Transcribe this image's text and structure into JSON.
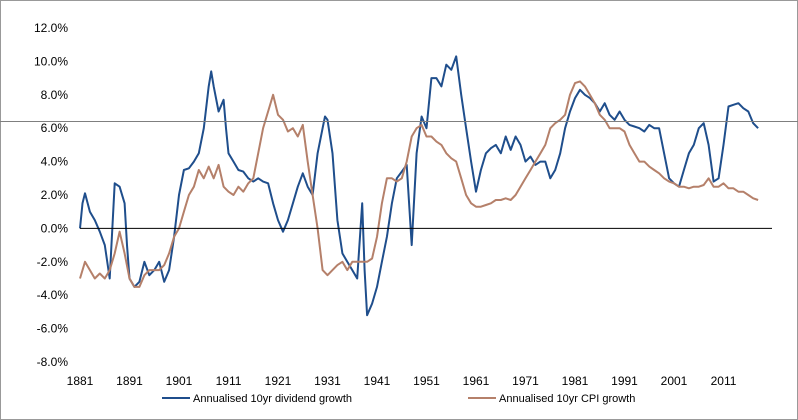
{
  "chart_data": {
    "type": "line",
    "title": "",
    "xlabel": "",
    "ylabel": "",
    "ylim": [
      -0.08,
      0.12
    ],
    "xlim": [
      1881,
      2019
    ],
    "y_ticks": [
      "-8.0%",
      "-6.0%",
      "-4.0%",
      "-2.0%",
      "0.0%",
      "2.0%",
      "4.0%",
      "6.0%",
      "8.0%",
      "10.0%",
      "12.0%"
    ],
    "y_tick_values": [
      -0.08,
      -0.06,
      -0.04,
      -0.02,
      0.0,
      0.02,
      0.04,
      0.06,
      0.08,
      0.1,
      0.12
    ],
    "x_ticks": [
      "1881",
      "1891",
      "1901",
      "1911",
      "1921",
      "1931",
      "1941",
      "1951",
      "1961",
      "1971",
      "1981",
      "1991",
      "2001",
      "2011"
    ],
    "x_tick_values": [
      1881,
      1891,
      1901,
      1911,
      1921,
      1931,
      1941,
      1951,
      1961,
      1971,
      1981,
      1991,
      2001,
      2011
    ],
    "reference_line": 0.064,
    "grid": false,
    "legend_position": "bottom",
    "series": [
      {
        "name": "Annualised 10yr dividend growth",
        "color": "#1f4e8c",
        "points": [
          [
            1881,
            0.0
          ],
          [
            1881.5,
            0.015
          ],
          [
            1882,
            0.021
          ],
          [
            1883,
            0.01
          ],
          [
            1884,
            0.005
          ],
          [
            1885,
            -0.002
          ],
          [
            1886,
            -0.01
          ],
          [
            1887,
            -0.03
          ],
          [
            1888,
            0.027
          ],
          [
            1889,
            0.025
          ],
          [
            1890,
            0.015
          ],
          [
            1890.5,
            -0.01
          ],
          [
            1891,
            -0.03
          ],
          [
            1892,
            -0.035
          ],
          [
            1893,
            -0.032
          ],
          [
            1894,
            -0.02
          ],
          [
            1895,
            -0.028
          ],
          [
            1896,
            -0.025
          ],
          [
            1897,
            -0.02
          ],
          [
            1898,
            -0.032
          ],
          [
            1899,
            -0.025
          ],
          [
            1900,
            -0.005
          ],
          [
            1901,
            0.02
          ],
          [
            1902,
            0.035
          ],
          [
            1903,
            0.036
          ],
          [
            1904,
            0.04
          ],
          [
            1905,
            0.045
          ],
          [
            1906,
            0.06
          ],
          [
            1907,
            0.085
          ],
          [
            1907.5,
            0.094
          ],
          [
            1908,
            0.085
          ],
          [
            1909,
            0.07
          ],
          [
            1910,
            0.077
          ],
          [
            1910.5,
            0.06
          ],
          [
            1911,
            0.045
          ],
          [
            1912,
            0.04
          ],
          [
            1913,
            0.035
          ],
          [
            1914,
            0.034
          ],
          [
            1915,
            0.03
          ],
          [
            1916,
            0.028
          ],
          [
            1917,
            0.03
          ],
          [
            1918,
            0.028
          ],
          [
            1919,
            0.027
          ],
          [
            1920,
            0.015
          ],
          [
            1921,
            0.005
          ],
          [
            1922,
            -0.002
          ],
          [
            1923,
            0.005
          ],
          [
            1924,
            0.015
          ],
          [
            1925,
            0.025
          ],
          [
            1926,
            0.033
          ],
          [
            1927,
            0.025
          ],
          [
            1928,
            0.02
          ],
          [
            1929,
            0.045
          ],
          [
            1930,
            0.06
          ],
          [
            1930.5,
            0.067
          ],
          [
            1931,
            0.065
          ],
          [
            1932,
            0.045
          ],
          [
            1933,
            0.005
          ],
          [
            1934,
            -0.015
          ],
          [
            1935,
            -0.02
          ],
          [
            1936,
            -0.025
          ],
          [
            1937,
            -0.03
          ],
          [
            1938,
            0.015
          ],
          [
            1938.5,
            -0.025
          ],
          [
            1939,
            -0.052
          ],
          [
            1940,
            -0.045
          ],
          [
            1941,
            -0.035
          ],
          [
            1942,
            -0.02
          ],
          [
            1943,
            -0.005
          ],
          [
            1944,
            0.015
          ],
          [
            1945,
            0.03
          ],
          [
            1946,
            0.034
          ],
          [
            1947,
            0.038
          ],
          [
            1948,
            -0.01
          ],
          [
            1949,
            0.045
          ],
          [
            1950,
            0.067
          ],
          [
            1951,
            0.06
          ],
          [
            1952,
            0.09
          ],
          [
            1953,
            0.09
          ],
          [
            1954,
            0.085
          ],
          [
            1955,
            0.098
          ],
          [
            1956,
            0.095
          ],
          [
            1957,
            0.103
          ],
          [
            1958,
            0.08
          ],
          [
            1959,
            0.06
          ],
          [
            1960,
            0.04
          ],
          [
            1961,
            0.022
          ],
          [
            1962,
            0.035
          ],
          [
            1963,
            0.045
          ],
          [
            1964,
            0.048
          ],
          [
            1965,
            0.05
          ],
          [
            1966,
            0.045
          ],
          [
            1967,
            0.055
          ],
          [
            1968,
            0.047
          ],
          [
            1969,
            0.055
          ],
          [
            1970,
            0.05
          ],
          [
            1971,
            0.04
          ],
          [
            1972,
            0.043
          ],
          [
            1973,
            0.038
          ],
          [
            1974,
            0.04
          ],
          [
            1975,
            0.04
          ],
          [
            1976,
            0.03
          ],
          [
            1977,
            0.035
          ],
          [
            1978,
            0.045
          ],
          [
            1979,
            0.06
          ],
          [
            1980,
            0.07
          ],
          [
            1981,
            0.078
          ],
          [
            1982,
            0.083
          ],
          [
            1983,
            0.08
          ],
          [
            1984,
            0.078
          ],
          [
            1985,
            0.075
          ],
          [
            1986,
            0.07
          ],
          [
            1987,
            0.075
          ],
          [
            1988,
            0.068
          ],
          [
            1989,
            0.065
          ],
          [
            1990,
            0.07
          ],
          [
            1991,
            0.065
          ],
          [
            1992,
            0.062
          ],
          [
            1993,
            0.061
          ],
          [
            1994,
            0.06
          ],
          [
            1995,
            0.058
          ],
          [
            1996,
            0.062
          ],
          [
            1997,
            0.06
          ],
          [
            1998,
            0.06
          ],
          [
            1999,
            0.045
          ],
          [
            2000,
            0.03
          ],
          [
            2001,
            0.027
          ],
          [
            2002,
            0.025
          ],
          [
            2003,
            0.035
          ],
          [
            2004,
            0.045
          ],
          [
            2005,
            0.05
          ],
          [
            2006,
            0.06
          ],
          [
            2007,
            0.063
          ],
          [
            2008,
            0.05
          ],
          [
            2009,
            0.028
          ],
          [
            2010,
            0.03
          ],
          [
            2011,
            0.05
          ],
          [
            2012,
            0.073
          ],
          [
            2013,
            0.074
          ],
          [
            2014,
            0.075
          ],
          [
            2015,
            0.072
          ],
          [
            2016,
            0.07
          ],
          [
            2017,
            0.063
          ],
          [
            2018,
            0.06
          ]
        ]
      },
      {
        "name": "Annualised 10yr CPI growth",
        "color": "#b5806a",
        "points": [
          [
            1881,
            -0.03
          ],
          [
            1882,
            -0.02
          ],
          [
            1883,
            -0.025
          ],
          [
            1884,
            -0.03
          ],
          [
            1885,
            -0.027
          ],
          [
            1886,
            -0.03
          ],
          [
            1887,
            -0.025
          ],
          [
            1888,
            -0.015
          ],
          [
            1889,
            -0.002
          ],
          [
            1890,
            -0.015
          ],
          [
            1891,
            -0.03
          ],
          [
            1892,
            -0.035
          ],
          [
            1893,
            -0.035
          ],
          [
            1894,
            -0.028
          ],
          [
            1895,
            -0.025
          ],
          [
            1896,
            -0.025
          ],
          [
            1897,
            -0.025
          ],
          [
            1898,
            -0.022
          ],
          [
            1899,
            -0.015
          ],
          [
            1900,
            -0.005
          ],
          [
            1901,
            0.0
          ],
          [
            1902,
            0.01
          ],
          [
            1903,
            0.02
          ],
          [
            1904,
            0.025
          ],
          [
            1905,
            0.035
          ],
          [
            1906,
            0.03
          ],
          [
            1907,
            0.037
          ],
          [
            1908,
            0.03
          ],
          [
            1909,
            0.038
          ],
          [
            1910,
            0.025
          ],
          [
            1911,
            0.022
          ],
          [
            1912,
            0.02
          ],
          [
            1913,
            0.025
          ],
          [
            1914,
            0.022
          ],
          [
            1915,
            0.027
          ],
          [
            1916,
            0.03
          ],
          [
            1917,
            0.045
          ],
          [
            1918,
            0.06
          ],
          [
            1919,
            0.07
          ],
          [
            1920,
            0.08
          ],
          [
            1921,
            0.068
          ],
          [
            1922,
            0.065
          ],
          [
            1923,
            0.058
          ],
          [
            1924,
            0.06
          ],
          [
            1925,
            0.055
          ],
          [
            1926,
            0.062
          ],
          [
            1927,
            0.04
          ],
          [
            1928,
            0.02
          ],
          [
            1929,
            0.0
          ],
          [
            1930,
            -0.025
          ],
          [
            1931,
            -0.028
          ],
          [
            1932,
            -0.025
          ],
          [
            1933,
            -0.022
          ],
          [
            1934,
            -0.02
          ],
          [
            1935,
            -0.025
          ],
          [
            1936,
            -0.02
          ],
          [
            1937,
            -0.02
          ],
          [
            1938,
            -0.02
          ],
          [
            1939,
            -0.02
          ],
          [
            1940,
            -0.018
          ],
          [
            1941,
            -0.005
          ],
          [
            1942,
            0.015
          ],
          [
            1943,
            0.03
          ],
          [
            1944,
            0.03
          ],
          [
            1945,
            0.028
          ],
          [
            1946,
            0.03
          ],
          [
            1947,
            0.04
          ],
          [
            1948,
            0.055
          ],
          [
            1949,
            0.06
          ],
          [
            1950,
            0.062
          ],
          [
            1951,
            0.055
          ],
          [
            1952,
            0.055
          ],
          [
            1953,
            0.052
          ],
          [
            1954,
            0.05
          ],
          [
            1955,
            0.045
          ],
          [
            1956,
            0.042
          ],
          [
            1957,
            0.04
          ],
          [
            1958,
            0.03
          ],
          [
            1959,
            0.02
          ],
          [
            1960,
            0.015
          ],
          [
            1961,
            0.013
          ],
          [
            1962,
            0.013
          ],
          [
            1963,
            0.014
          ],
          [
            1964,
            0.015
          ],
          [
            1965,
            0.017
          ],
          [
            1966,
            0.017
          ],
          [
            1967,
            0.018
          ],
          [
            1968,
            0.017
          ],
          [
            1969,
            0.02
          ],
          [
            1970,
            0.025
          ],
          [
            1971,
            0.03
          ],
          [
            1972,
            0.035
          ],
          [
            1973,
            0.04
          ],
          [
            1974,
            0.045
          ],
          [
            1975,
            0.05
          ],
          [
            1976,
            0.06
          ],
          [
            1977,
            0.063
          ],
          [
            1978,
            0.065
          ],
          [
            1979,
            0.068
          ],
          [
            1980,
            0.08
          ],
          [
            1981,
            0.087
          ],
          [
            1982,
            0.088
          ],
          [
            1983,
            0.085
          ],
          [
            1984,
            0.08
          ],
          [
            1985,
            0.075
          ],
          [
            1986,
            0.068
          ],
          [
            1987,
            0.065
          ],
          [
            1988,
            0.06
          ],
          [
            1989,
            0.06
          ],
          [
            1990,
            0.06
          ],
          [
            1991,
            0.058
          ],
          [
            1992,
            0.05
          ],
          [
            1993,
            0.045
          ],
          [
            1994,
            0.04
          ],
          [
            1995,
            0.04
          ],
          [
            1996,
            0.037
          ],
          [
            1997,
            0.035
          ],
          [
            1998,
            0.033
          ],
          [
            1999,
            0.03
          ],
          [
            2000,
            0.028
          ],
          [
            2001,
            0.027
          ],
          [
            2002,
            0.025
          ],
          [
            2003,
            0.025
          ],
          [
            2004,
            0.024
          ],
          [
            2005,
            0.025
          ],
          [
            2006,
            0.025
          ],
          [
            2007,
            0.026
          ],
          [
            2008,
            0.03
          ],
          [
            2009,
            0.025
          ],
          [
            2010,
            0.025
          ],
          [
            2011,
            0.027
          ],
          [
            2012,
            0.024
          ],
          [
            2013,
            0.024
          ],
          [
            2014,
            0.022
          ],
          [
            2015,
            0.022
          ],
          [
            2016,
            0.02
          ],
          [
            2017,
            0.018
          ],
          [
            2018,
            0.017
          ]
        ]
      }
    ]
  }
}
